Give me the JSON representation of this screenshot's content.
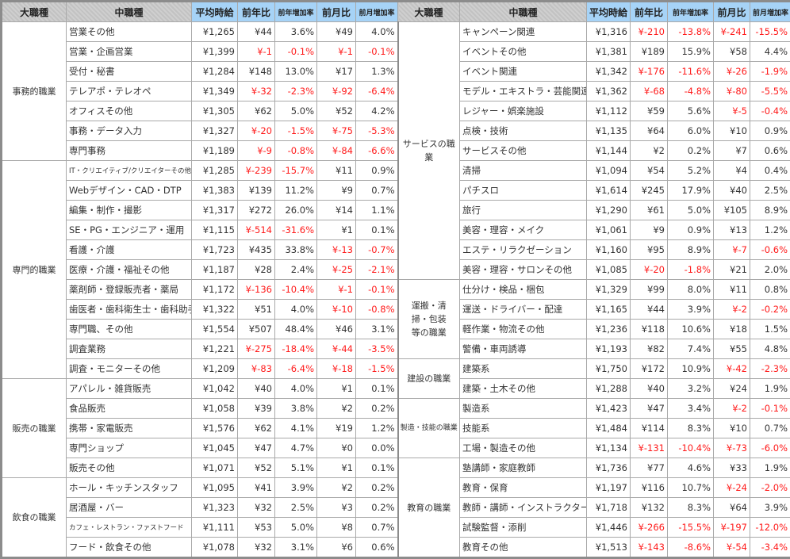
{
  "headers": [
    "大職種",
    "中職種",
    "平均時給",
    "前年比",
    "前年増加率",
    "前月比",
    "前月増加率"
  ],
  "colors": {
    "negative": "#ff1a1a",
    "header_numeric_bg": "#a6d3f7",
    "header_category_bg": "#c8c8c8"
  },
  "left": [
    {
      "group": "事務的職業",
      "rows": [
        [
          "営業その他",
          "¥1,265",
          "¥44",
          "3.6%",
          "¥49",
          "4.0%"
        ],
        [
          "営業・企画営業",
          "¥1,399",
          "¥-1",
          "-0.1%",
          "¥-1",
          "-0.1%"
        ],
        [
          "受付・秘書",
          "¥1,284",
          "¥148",
          "13.0%",
          "¥17",
          "1.3%"
        ],
        [
          "テレアポ・テレオペ",
          "¥1,349",
          "¥-32",
          "-2.3%",
          "¥-92",
          "-6.4%"
        ],
        [
          "オフィスその他",
          "¥1,305",
          "¥62",
          "5.0%",
          "¥52",
          "4.2%"
        ],
        [
          "事務・データ入力",
          "¥1,327",
          "¥-20",
          "-1.5%",
          "¥-75",
          "-5.3%"
        ],
        [
          "専門事務",
          "¥1,189",
          "¥-9",
          "-0.8%",
          "¥-84",
          "-6.6%"
        ]
      ]
    },
    {
      "group": "専門的職業",
      "rows": [
        [
          "IT・クリエイティブ/クリエイターその他",
          "¥1,285",
          "¥-239",
          "-15.7%",
          "¥11",
          "0.9%"
        ],
        [
          "Webデザイン・CAD・DTP",
          "¥1,383",
          "¥139",
          "11.2%",
          "¥9",
          "0.7%"
        ],
        [
          "編集・制作・撮影",
          "¥1,317",
          "¥272",
          "26.0%",
          "¥14",
          "1.1%"
        ],
        [
          "SE・PG・エンジニア・運用",
          "¥1,115",
          "¥-514",
          "-31.6%",
          "¥1",
          "0.1%"
        ],
        [
          "看護・介護",
          "¥1,723",
          "¥435",
          "33.8%",
          "¥-13",
          "-0.7%"
        ],
        [
          "医療・介護・福祉その他",
          "¥1,187",
          "¥28",
          "2.4%",
          "¥-25",
          "-2.1%"
        ],
        [
          "薬剤師・登録販売者・薬局",
          "¥1,172",
          "¥-136",
          "-10.4%",
          "¥-1",
          "-0.1%"
        ],
        [
          "歯医者・歯科衛生士・歯科助手",
          "¥1,322",
          "¥51",
          "4.0%",
          "¥-10",
          "-0.8%"
        ],
        [
          "専門職、その他",
          "¥1,554",
          "¥507",
          "48.4%",
          "¥46",
          "3.1%"
        ],
        [
          "調査業務",
          "¥1,221",
          "¥-275",
          "-18.4%",
          "¥-44",
          "-3.5%"
        ],
        [
          "調査・モニターその他",
          "¥1,209",
          "¥-83",
          "-6.4%",
          "¥-18",
          "-1.5%"
        ]
      ]
    },
    {
      "group": "販売の職業",
      "rows": [
        [
          "アパレル・雑貨販売",
          "¥1,042",
          "¥40",
          "4.0%",
          "¥1",
          "0.1%"
        ],
        [
          "食品販売",
          "¥1,058",
          "¥39",
          "3.8%",
          "¥2",
          "0.2%"
        ],
        [
          "携帯・家電販売",
          "¥1,576",
          "¥62",
          "4.1%",
          "¥19",
          "1.2%"
        ],
        [
          "専門ショップ",
          "¥1,045",
          "¥47",
          "4.7%",
          "¥0",
          "0.0%"
        ],
        [
          "販売その他",
          "¥1,071",
          "¥52",
          "5.1%",
          "¥1",
          "0.1%"
        ]
      ]
    },
    {
      "group": "飲食の職業",
      "rows": [
        [
          "ホール・キッチンスタッフ",
          "¥1,095",
          "¥41",
          "3.9%",
          "¥2",
          "0.2%"
        ],
        [
          "居酒屋・バー",
          "¥1,323",
          "¥32",
          "2.5%",
          "¥3",
          "0.2%"
        ],
        [
          "カフェ・レストラン・ファストフード",
          "¥1,111",
          "¥53",
          "5.0%",
          "¥8",
          "0.7%"
        ],
        [
          "フード・飲食その他",
          "¥1,078",
          "¥32",
          "3.1%",
          "¥6",
          "0.6%"
        ]
      ]
    }
  ],
  "right": [
    {
      "group": "サービスの職業",
      "rows": [
        [
          "キャンペーン関連",
          "¥1,316",
          "¥-210",
          "-13.8%",
          "¥-241",
          "-15.5%"
        ],
        [
          "イベントその他",
          "¥1,381",
          "¥189",
          "15.9%",
          "¥58",
          "4.4%"
        ],
        [
          "イベント関連",
          "¥1,342",
          "¥-176",
          "-11.6%",
          "¥-26",
          "-1.9%"
        ],
        [
          "モデル・エキストラ・芸能関連",
          "¥1,362",
          "¥-68",
          "-4.8%",
          "¥-80",
          "-5.5%"
        ],
        [
          "レジャー・娯楽施設",
          "¥1,112",
          "¥59",
          "5.6%",
          "¥-5",
          "-0.4%"
        ],
        [
          "点検・技術",
          "¥1,135",
          "¥64",
          "6.0%",
          "¥10",
          "0.9%"
        ],
        [
          "サービスその他",
          "¥1,144",
          "¥2",
          "0.2%",
          "¥7",
          "0.6%"
        ],
        [
          "清掃",
          "¥1,094",
          "¥54",
          "5.2%",
          "¥4",
          "0.4%"
        ],
        [
          "パチスロ",
          "¥1,614",
          "¥245",
          "17.9%",
          "¥40",
          "2.5%"
        ],
        [
          "旅行",
          "¥1,290",
          "¥61",
          "5.0%",
          "¥105",
          "8.9%"
        ],
        [
          "美容・理容・メイク",
          "¥1,061",
          "¥9",
          "0.9%",
          "¥13",
          "1.2%"
        ],
        [
          "エステ・リラクゼーション",
          "¥1,160",
          "¥95",
          "8.9%",
          "¥-7",
          "-0.6%"
        ],
        [
          "美容・理容・サロンその他",
          "¥1,085",
          "¥-20",
          "-1.8%",
          "¥21",
          "2.0%"
        ]
      ]
    },
    {
      "group": "運搬・清掃・包装等の職業",
      "rows": [
        [
          "仕分け・検品・梱包",
          "¥1,329",
          "¥99",
          "8.0%",
          "¥11",
          "0.8%"
        ],
        [
          "運送・ドライバー・配達",
          "¥1,165",
          "¥44",
          "3.9%",
          "¥-2",
          "-0.2%"
        ],
        [
          "軽作業・物流その他",
          "¥1,236",
          "¥118",
          "10.6%",
          "¥18",
          "1.5%"
        ],
        [
          "警備・車両誘導",
          "¥1,193",
          "¥82",
          "7.4%",
          "¥55",
          "4.8%"
        ]
      ]
    },
    {
      "group": "建設の職業",
      "rows": [
        [
          "建築系",
          "¥1,750",
          "¥172",
          "10.9%",
          "¥-42",
          "-2.3%"
        ],
        [
          "建築・土木その他",
          "¥1,288",
          "¥40",
          "3.2%",
          "¥24",
          "1.9%"
        ]
      ]
    },
    {
      "group": "製造・技能の職業",
      "rows": [
        [
          "製造系",
          "¥1,423",
          "¥47",
          "3.4%",
          "¥-2",
          "-0.1%"
        ],
        [
          "技能系",
          "¥1,484",
          "¥114",
          "8.3%",
          "¥10",
          "0.7%"
        ],
        [
          "工場・製造その他",
          "¥1,134",
          "¥-131",
          "-10.4%",
          "¥-73",
          "-6.0%"
        ]
      ]
    },
    {
      "group": "教育の職業",
      "rows": [
        [
          "塾講師・家庭教師",
          "¥1,736",
          "¥77",
          "4.6%",
          "¥33",
          "1.9%"
        ],
        [
          "教育・保育",
          "¥1,197",
          "¥116",
          "10.7%",
          "¥-24",
          "-2.0%"
        ],
        [
          "教師・講師・インストラクター",
          "¥1,718",
          "¥132",
          "8.3%",
          "¥64",
          "3.9%"
        ],
        [
          "試験監督・添削",
          "¥1,446",
          "¥-266",
          "-15.5%",
          "¥-197",
          "-12.0%"
        ],
        [
          "教育その他",
          "¥1,513",
          "¥-143",
          "-8.6%",
          "¥-54",
          "-3.4%"
        ]
      ]
    }
  ]
}
